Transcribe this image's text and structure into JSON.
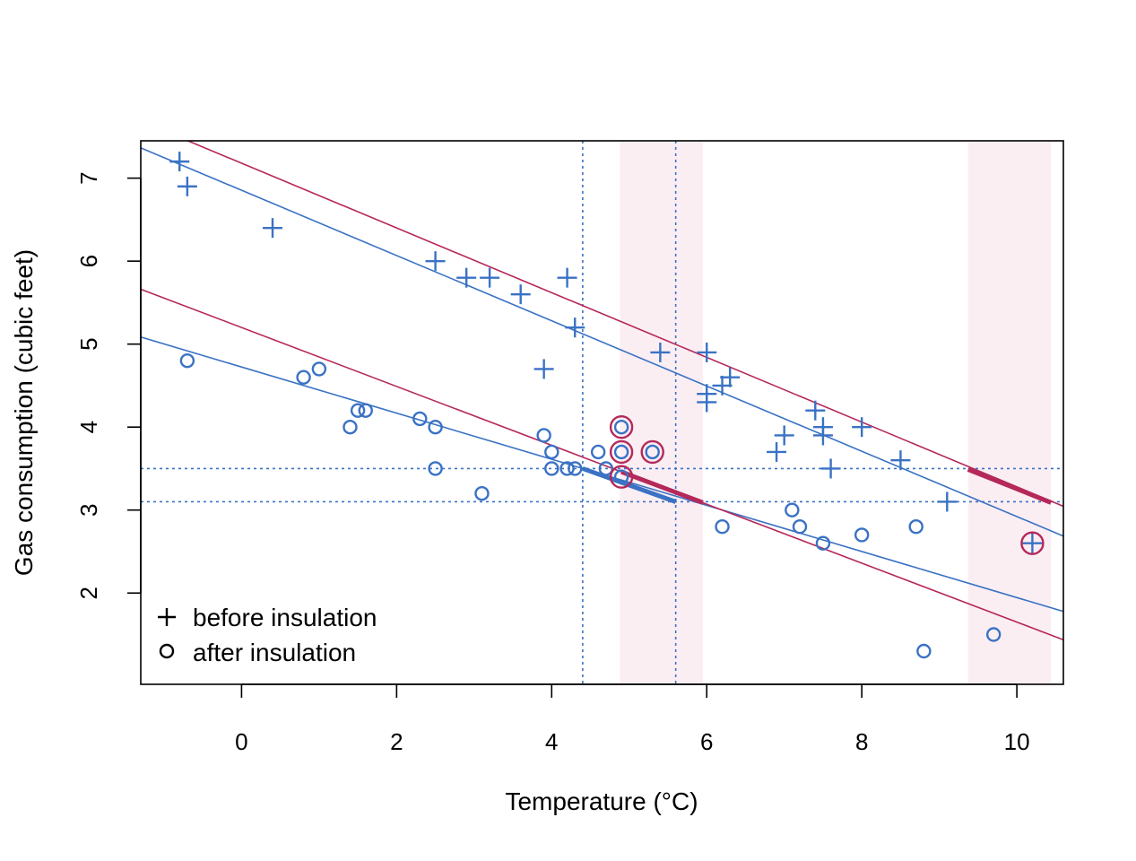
{
  "chart_data": {
    "type": "scatter",
    "title": "",
    "xlabel": "Temperature (°C)",
    "ylabel": "Gas consumption (cubic feet)",
    "xlim": [
      -1.3,
      10.6
    ],
    "ylim": [
      0.9,
      7.45
    ],
    "xticks": [
      0,
      2,
      4,
      6,
      8,
      10
    ],
    "yticks": [
      2,
      3,
      4,
      5,
      6,
      7
    ],
    "legend": {
      "position": "bottom-left",
      "entries": [
        "before insulation",
        "after insulation"
      ]
    },
    "colors": {
      "blue": "#3a72c4",
      "crimson": "#b5285a",
      "shade": "#fbeef3"
    },
    "series": [
      {
        "name": "before insulation",
        "marker": "plus",
        "points": [
          [
            -0.8,
            7.2
          ],
          [
            -0.7,
            6.9
          ],
          [
            0.4,
            6.4
          ],
          [
            2.5,
            6.0
          ],
          [
            2.9,
            5.8
          ],
          [
            3.2,
            5.8
          ],
          [
            3.6,
            5.6
          ],
          [
            3.9,
            4.7
          ],
          [
            4.2,
            5.8
          ],
          [
            4.3,
            5.2
          ],
          [
            5.4,
            4.9
          ],
          [
            6.0,
            4.9
          ],
          [
            6.0,
            4.4
          ],
          [
            6.0,
            4.3
          ],
          [
            6.2,
            4.5
          ],
          [
            6.3,
            4.6
          ],
          [
            6.9,
            3.7
          ],
          [
            7.0,
            3.9
          ],
          [
            7.4,
            4.2
          ],
          [
            7.5,
            4.0
          ],
          [
            7.5,
            3.9
          ],
          [
            7.6,
            3.5
          ],
          [
            8.0,
            4.0
          ],
          [
            8.5,
            3.6
          ],
          [
            9.1,
            3.1
          ],
          [
            10.2,
            2.6
          ]
        ]
      },
      {
        "name": "after insulation",
        "marker": "circle",
        "points": [
          [
            -0.7,
            4.8
          ],
          [
            0.8,
            4.6
          ],
          [
            1.0,
            4.7
          ],
          [
            1.4,
            4.0
          ],
          [
            1.5,
            4.2
          ],
          [
            1.6,
            4.2
          ],
          [
            2.3,
            4.1
          ],
          [
            2.5,
            4.0
          ],
          [
            2.5,
            3.5
          ],
          [
            3.1,
            3.2
          ],
          [
            3.9,
            3.9
          ],
          [
            4.0,
            3.5
          ],
          [
            4.0,
            3.7
          ],
          [
            4.2,
            3.5
          ],
          [
            4.3,
            3.5
          ],
          [
            4.6,
            3.7
          ],
          [
            4.7,
            3.5
          ],
          [
            4.9,
            4.0
          ],
          [
            4.9,
            3.7
          ],
          [
            4.9,
            3.4
          ],
          [
            5.3,
            3.7
          ],
          [
            6.2,
            2.8
          ],
          [
            7.1,
            3.0
          ],
          [
            7.2,
            2.8
          ],
          [
            7.5,
            2.6
          ],
          [
            8.0,
            2.7
          ],
          [
            8.7,
            2.8
          ],
          [
            8.8,
            1.3
          ],
          [
            9.7,
            1.5
          ]
        ]
      }
    ],
    "fit_lines": [
      {
        "group": "before insulation",
        "color": "blue",
        "intercept": 6.854,
        "slope": -0.3932
      },
      {
        "group": "after insulation",
        "color": "blue",
        "intercept": 4.724,
        "slope": -0.2779
      },
      {
        "group": "before insulation",
        "color": "crimson",
        "intercept": 7.18,
        "slope": -0.39
      },
      {
        "group": "after insulation",
        "color": "crimson",
        "intercept": 5.2,
        "slope": -0.355
      }
    ],
    "reference_lines": {
      "vertical": [
        4.4,
        5.6
      ],
      "horizontal": [
        3.5,
        3.1
      ]
    },
    "shaded_bands": [
      [
        4.88,
        5.95
      ],
      [
        9.37,
        10.44
      ]
    ],
    "highlighted_segments": [
      {
        "color": "blue",
        "from": [
          4.4,
          3.5
        ],
        "to": [
          5.6,
          3.1
        ]
      },
      {
        "color": "crimson",
        "from": [
          4.9,
          3.46
        ],
        "to": [
          5.95,
          3.09
        ]
      },
      {
        "color": "crimson",
        "from": [
          9.37,
          3.49
        ],
        "to": [
          10.44,
          3.09
        ]
      }
    ],
    "highlighted_points": [
      [
        4.9,
        4.0
      ],
      [
        4.9,
        3.7
      ],
      [
        4.9,
        3.4
      ],
      [
        5.3,
        3.7
      ],
      [
        10.2,
        2.6
      ]
    ]
  }
}
